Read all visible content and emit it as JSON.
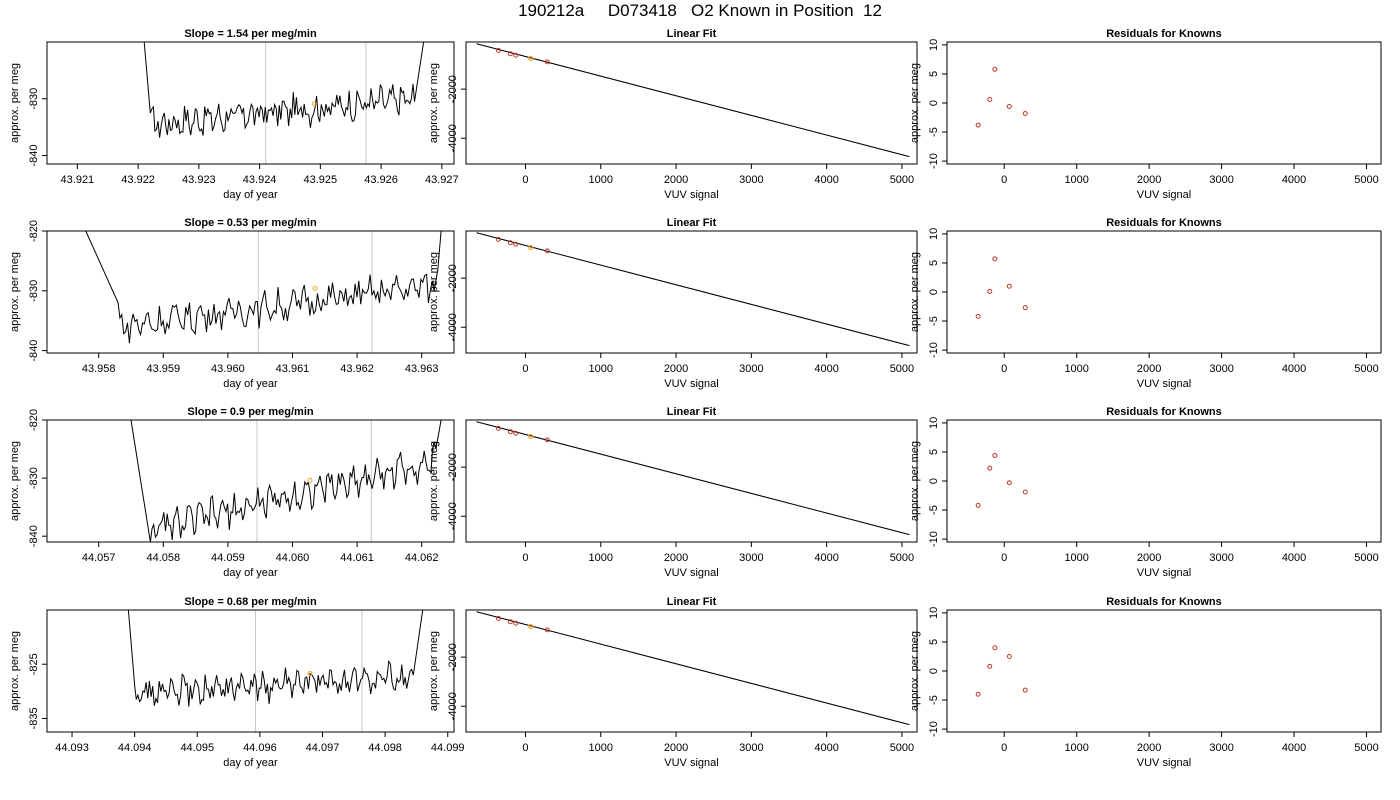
{
  "page": {
    "title": "190212a     D073418   O2 Known in Position  12"
  },
  "chart_data": [
    {
      "type": "line",
      "panel": "trace",
      "title": "Slope =  1.54  per meg/min",
      "xlabel": "day of year",
      "ylabel": "approx. per meg",
      "xlim": [
        43.9205,
        43.9272
      ],
      "ylim": [
        -841.5,
        -820.0
      ],
      "xticks": [
        "43.921",
        "43.922",
        "43.923",
        "43.924",
        "43.925",
        "43.926",
        "43.927"
      ],
      "yticks": [
        "-840",
        "-830"
      ],
      "vlines": [
        43.9241,
        43.92575
      ],
      "t_start": 43.9221,
      "t_end": 43.9267,
      "y_left_top": -820,
      "y_right_top": -820,
      "x_drop_end": 43.9222,
      "y_drop_end": -832.5,
      "x_rise_start": 43.92655,
      "y_rise_start": -830.5,
      "baseline_start": -834.5,
      "baseline_end": -830,
      "mean": -830.9,
      "point": [
        43.9249,
        -830.9
      ]
    },
    {
      "type": "line",
      "panel": "fit",
      "title": "Linear Fit",
      "xlabel": "VUV signal",
      "ylabel": "approx. per meg",
      "xlim": [
        -790,
        5200
      ],
      "ylim": [
        -5050,
        -80
      ],
      "xticks": [
        "0",
        "1000",
        "2000",
        "3000",
        "4000",
        "5000"
      ],
      "yticks": [
        "-2000",
        "-4000"
      ],
      "line": [
        [
          -650,
          -150
        ],
        [
          5100,
          -4750
        ]
      ],
      "knowns": [
        [
          -360,
          -420
        ],
        [
          -200,
          -560
        ],
        [
          -130,
          -620
        ],
        [
          290,
          -890
        ]
      ],
      "sample": [
        70,
        -750
      ]
    },
    {
      "type": "scatter",
      "panel": "residuals",
      "title": "Residuals for Knowns",
      "xlabel": "VUV signal",
      "ylabel": "approx. per meg",
      "xlim": [
        -790,
        5200
      ],
      "ylim": [
        -10.5,
        10.5
      ],
      "xticks": [
        "0",
        "1000",
        "2000",
        "3000",
        "4000",
        "5000"
      ],
      "yticks": [
        "-10",
        "-5",
        "0",
        "5",
        "10"
      ],
      "points": [
        [
          -360,
          -3.8
        ],
        [
          -200,
          0.6
        ],
        [
          -130,
          5.8
        ],
        [
          70,
          -0.6
        ],
        [
          290,
          -1.8
        ]
      ]
    },
    {
      "type": "line",
      "panel": "trace",
      "title": "Slope =  0.53  per meg/min",
      "xlabel": "day of year",
      "ylabel": "approx. per meg",
      "xlim": [
        43.9572,
        43.9635
      ],
      "ylim": [
        -840.4,
        -820.0
      ],
      "xticks": [
        "43.958",
        "43.959",
        "43.960",
        "43.961",
        "43.962",
        "43.963"
      ],
      "yticks": [
        "-840",
        "-830",
        "-820"
      ],
      "vlines": [
        43.96047,
        43.96223
      ],
      "t_start": 43.9578,
      "t_end": 43.9633,
      "y_left_top": -820,
      "y_right_top": -820,
      "x_drop_end": 43.9583,
      "y_drop_end": -832,
      "x_rise_start": 43.96325,
      "y_rise_start": -826.5,
      "baseline_start": -836,
      "baseline_end": -829,
      "mean": -829.6,
      "point": [
        43.96135,
        -829.6
      ]
    },
    {
      "type": "line",
      "panel": "fit",
      "title": "Linear Fit",
      "xlabel": "VUV signal",
      "ylabel": "approx. per meg",
      "xlim": [
        -790,
        5200
      ],
      "ylim": [
        -5050,
        -80
      ],
      "xticks": [
        "0",
        "1000",
        "2000",
        "3000",
        "4000",
        "5000"
      ],
      "yticks": [
        "-2000",
        "-4000"
      ],
      "line": [
        [
          -650,
          -150
        ],
        [
          5100,
          -4750
        ]
      ],
      "knowns": [
        [
          -360,
          -420
        ],
        [
          -200,
          -560
        ],
        [
          -130,
          -620
        ],
        [
          290,
          -890
        ]
      ],
      "sample": [
        70,
        -750
      ]
    },
    {
      "type": "scatter",
      "panel": "residuals",
      "title": "Residuals for Knowns",
      "xlabel": "VUV signal",
      "ylabel": "approx. per meg",
      "xlim": [
        -790,
        5200
      ],
      "ylim": [
        -10.5,
        10.5
      ],
      "xticks": [
        "0",
        "1000",
        "2000",
        "3000",
        "4000",
        "5000"
      ],
      "yticks": [
        "-10",
        "-5",
        "0",
        "5",
        "10"
      ],
      "points": [
        [
          -360,
          -4.2
        ],
        [
          -200,
          0.1
        ],
        [
          -130,
          5.7
        ],
        [
          70,
          1.0
        ],
        [
          290,
          -2.7
        ]
      ]
    },
    {
      "type": "line",
      "panel": "trace",
      "title": "Slope =  0.9  per meg/min",
      "xlabel": "day of year",
      "ylabel": "approx. per meg",
      "xlim": [
        44.0562,
        44.0625
      ],
      "ylim": [
        -841.0,
        -820.0
      ],
      "xticks": [
        "44.057",
        "44.058",
        "44.059",
        "44.060",
        "44.061",
        "44.062"
      ],
      "yticks": [
        "-840",
        "-830",
        "-820"
      ],
      "vlines": [
        44.05945,
        44.06122
      ],
      "t_start": 44.0575,
      "t_end": 44.0623,
      "y_left_top": -820,
      "y_right_top": -820,
      "x_drop_end": 44.0578,
      "y_drop_end": -841,
      "x_rise_start": 44.06222,
      "y_rise_start": -825,
      "baseline_start": -839,
      "baseline_end": -827,
      "mean": -830.4,
      "point": [
        44.06027,
        -830.4
      ]
    },
    {
      "type": "line",
      "panel": "fit",
      "title": "Linear Fit",
      "xlabel": "VUV signal",
      "ylabel": "approx. per meg",
      "xlim": [
        -790,
        5200
      ],
      "ylim": [
        -5050,
        -80
      ],
      "xticks": [
        "0",
        "1000",
        "2000",
        "3000",
        "4000",
        "5000"
      ],
      "yticks": [
        "-2000",
        "-4000"
      ],
      "line": [
        [
          -650,
          -150
        ],
        [
          5100,
          -4750
        ]
      ],
      "knowns": [
        [
          -360,
          -420
        ],
        [
          -200,
          -560
        ],
        [
          -130,
          -620
        ],
        [
          290,
          -890
        ]
      ],
      "sample": [
        70,
        -750
      ]
    },
    {
      "type": "scatter",
      "panel": "residuals",
      "title": "Residuals for Knowns",
      "xlabel": "VUV signal",
      "ylabel": "approx. per meg",
      "xlim": [
        -790,
        5200
      ],
      "ylim": [
        -10.5,
        10.5
      ],
      "xticks": [
        "0",
        "1000",
        "2000",
        "3000",
        "4000",
        "5000"
      ],
      "yticks": [
        "-10",
        "-5",
        "0",
        "5",
        "10"
      ],
      "points": [
        [
          -360,
          -4.2
        ],
        [
          -200,
          2.2
        ],
        [
          -130,
          4.4
        ],
        [
          70,
          -0.3
        ],
        [
          290,
          -1.9
        ]
      ]
    },
    {
      "type": "line",
      "panel": "trace",
      "title": "Slope =  0.68  per meg/min",
      "xlabel": "day of year",
      "ylabel": "approx. per meg",
      "xlim": [
        44.0926,
        44.0991
      ],
      "ylim": [
        -837.5,
        -815.0
      ],
      "xticks": [
        "44.093",
        "44.094",
        "44.095",
        "44.096",
        "44.097",
        "44.098",
        "44.099"
      ],
      "yticks": [
        "-835",
        "-825"
      ],
      "vlines": [
        44.09593,
        44.09763
      ],
      "t_start": 44.0939,
      "t_end": 44.0986,
      "y_left_top": -815,
      "y_right_top": -815,
      "x_drop_end": 44.094,
      "y_drop_end": -829,
      "x_rise_start": 44.09845,
      "y_rise_start": -827,
      "baseline_start": -830.5,
      "baseline_end": -827.5,
      "mean": -826.7,
      "point": [
        44.0968,
        -826.7
      ]
    },
    {
      "type": "line",
      "panel": "fit",
      "title": "Linear Fit",
      "xlabel": "VUV signal",
      "ylabel": "approx. per meg",
      "xlim": [
        -790,
        5200
      ],
      "ylim": [
        -5050,
        -80
      ],
      "xticks": [
        "0",
        "1000",
        "2000",
        "3000",
        "4000",
        "5000"
      ],
      "yticks": [
        "-2000",
        "-4000"
      ],
      "line": [
        [
          -650,
          -150
        ],
        [
          5100,
          -4750
        ]
      ],
      "knowns": [
        [
          -360,
          -420
        ],
        [
          -200,
          -560
        ],
        [
          -130,
          -620
        ],
        [
          290,
          -890
        ]
      ],
      "sample": [
        70,
        -750
      ]
    },
    {
      "type": "scatter",
      "panel": "residuals",
      "title": "Residuals for Knowns",
      "xlabel": "VUV signal",
      "ylabel": "approx. per meg",
      "xlim": [
        -790,
        5200
      ],
      "ylim": [
        -10.5,
        10.5
      ],
      "xticks": [
        "0",
        "1000",
        "2000",
        "3000",
        "4000",
        "5000"
      ],
      "yticks": [
        "-10",
        "-5",
        "0",
        "5",
        "10"
      ],
      "points": [
        [
          -360,
          -4.0
        ],
        [
          -200,
          0.8
        ],
        [
          -130,
          4.0
        ],
        [
          70,
          2.5
        ],
        [
          290,
          -3.3
        ]
      ]
    }
  ],
  "colors": {
    "line": "#000000",
    "vline": "#c8c8c8",
    "known_point": "#c0392b",
    "sample_point": "#f5a623",
    "frame": "#000000"
  }
}
